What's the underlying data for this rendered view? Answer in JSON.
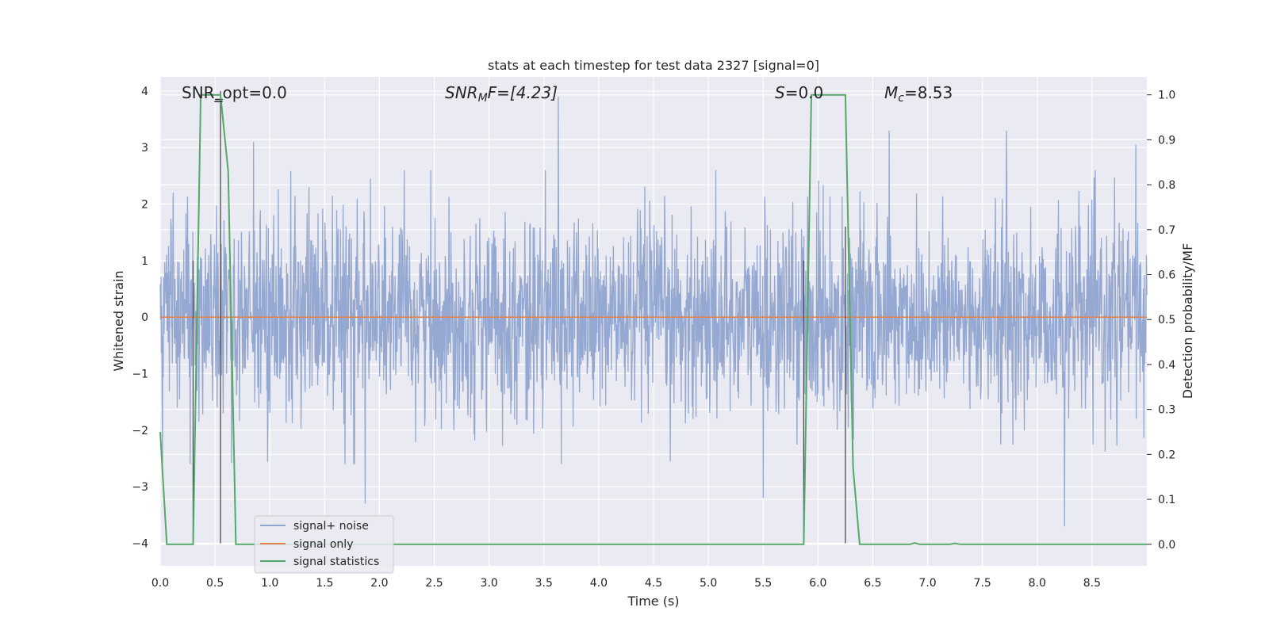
{
  "chart_data": {
    "type": "line",
    "title": "stats at each timestep for test data 2327 [signal=0]",
    "xlabel": "Time (s)",
    "ylabel": "Whitened strain",
    "y2label": "Detection probability/MF",
    "xlim": [
      0.0,
      9.0
    ],
    "ylim": [
      -4.4,
      4.25
    ],
    "y2lim": [
      -0.048,
      1.04
    ],
    "xticks": [
      "0.0",
      "0.5",
      "1.0",
      "1.5",
      "2.0",
      "2.5",
      "3.0",
      "3.5",
      "4.0",
      "4.5",
      "5.0",
      "5.5",
      "6.0",
      "6.5",
      "7.0",
      "7.5",
      "8.0",
      "8.5"
    ],
    "yticks": [
      "4",
      "3",
      "2",
      "1",
      "0",
      "−1",
      "−2",
      "−3",
      "−4"
    ],
    "y2ticks": [
      "1.0",
      "0.9",
      "0.8",
      "0.7",
      "0.6",
      "0.5",
      "0.4",
      "0.3",
      "0.2",
      "0.1",
      "0.0"
    ],
    "grid": true,
    "legend_position": "lower-left",
    "annotations": {
      "snr_opt": "SNR_opt=0.0",
      "snr_mf_main": "SNR",
      "snr_mf_sub": "M",
      "snr_mf_rest": "F=[4.23]",
      "s_main": "S",
      "s_rest": "=0.0",
      "mc_main": "M",
      "mc_sub": "c",
      "mc_rest": "=8.53"
    },
    "series": [
      {
        "name": "signal+ noise",
        "color": "#8fa4cf",
        "description_of_values": "whitened noise, |y| mostly below 2.5",
        "peaks": [
          [
            3.63,
            3.9
          ],
          [
            1.87,
            -3.3
          ],
          [
            8.25,
            -3.7
          ],
          [
            5.5,
            -3.2
          ],
          [
            0.85,
            3.1
          ],
          [
            7.72,
            3.3
          ],
          [
            6.65,
            3.3
          ],
          [
            8.9,
            3.05
          ]
        ]
      },
      {
        "name": "signal only",
        "color": "#dd8452",
        "values": [
          [
            0.0,
            0.0
          ],
          [
            9.0,
            0.0
          ]
        ]
      },
      {
        "name": "signal statistics",
        "color": "#55a868",
        "axis": "right",
        "points": [
          [
            0.0,
            0.25
          ],
          [
            0.06,
            0.0
          ],
          [
            0.3,
            0.0
          ],
          [
            0.37,
            1.0
          ],
          [
            0.55,
            1.0
          ],
          [
            0.62,
            0.83
          ],
          [
            0.69,
            0.0
          ],
          [
            5.87,
            0.0
          ],
          [
            5.94,
            1.0
          ],
          [
            6.25,
            1.0
          ],
          [
            6.32,
            0.17
          ],
          [
            6.38,
            0.0
          ],
          [
            6.84,
            0.0
          ],
          [
            6.88,
            0.003
          ],
          [
            6.93,
            0.0
          ],
          [
            7.2,
            0.0
          ],
          [
            7.25,
            0.002
          ],
          [
            7.3,
            0.0
          ],
          [
            9.0,
            0.0
          ]
        ]
      }
    ],
    "vlines": [
      {
        "x": 0.3,
        "y1": 1.0,
        "y2": -4.0
      },
      {
        "x": 0.55,
        "y1": 4.0,
        "y2": -4.0
      },
      {
        "x": 5.87,
        "y1": 1.0,
        "y2": -4.0
      },
      {
        "x": 6.25,
        "y1": 1.6,
        "y2": -4.0
      }
    ],
    "hmarks": [
      {
        "x1": 0.5,
        "x2": 0.57,
        "y": 3.85
      }
    ]
  }
}
